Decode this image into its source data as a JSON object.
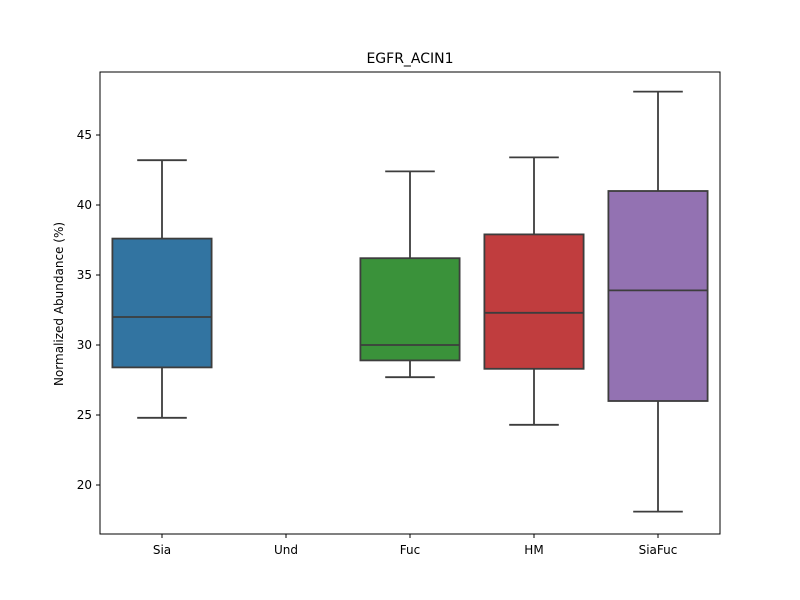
{
  "chart_data": {
    "type": "box",
    "title": "EGFR_ACIN1",
    "xlabel": "",
    "ylabel": "Normalized Abundance (%)",
    "ylim": [
      16.5,
      49.5
    ],
    "yticks": [
      20,
      25,
      30,
      35,
      40,
      45
    ],
    "grid": false,
    "categories": [
      "Sia",
      "Und",
      "Fuc",
      "HM",
      "SiaFuc"
    ],
    "boxes": [
      {
        "category": "Sia",
        "color": "#3274a1",
        "whisker_low": 24.8,
        "q1": 28.4,
        "median": 32.0,
        "q3": 37.6,
        "whisker_high": 43.2
      },
      {
        "category": "Und",
        "color": "#e1812c",
        "whisker_low": null,
        "q1": null,
        "median": null,
        "q3": null,
        "whisker_high": null
      },
      {
        "category": "Fuc",
        "color": "#3a923a",
        "whisker_low": 27.7,
        "q1": 28.9,
        "median": 30.0,
        "q3": 36.2,
        "whisker_high": 42.4
      },
      {
        "category": "HM",
        "color": "#c03d3e",
        "whisker_low": 24.3,
        "q1": 28.3,
        "median": 32.3,
        "q3": 37.9,
        "whisker_high": 43.4
      },
      {
        "category": "SiaFuc",
        "color": "#9372b2",
        "whisker_low": 18.1,
        "q1": 26.0,
        "median": 33.9,
        "q3": 41.0,
        "whisker_high": 48.1
      }
    ]
  }
}
